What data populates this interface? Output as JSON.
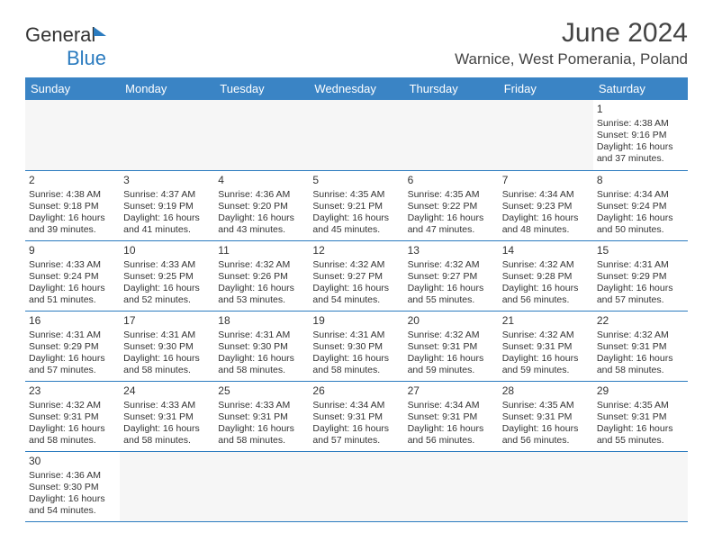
{
  "brand": {
    "name_part1": "General",
    "name_part2": "Blue"
  },
  "title": "June 2024",
  "location": "Warnice, West Pomerania, Poland",
  "colors": {
    "header_bg": "#3a84c5",
    "border": "#2b7bbf",
    "brand_blue": "#2b7bbf",
    "text": "#333333",
    "empty_bg": "#f6f6f6"
  },
  "day_headers": [
    "Sunday",
    "Monday",
    "Tuesday",
    "Wednesday",
    "Thursday",
    "Friday",
    "Saturday"
  ],
  "weeks": [
    [
      null,
      null,
      null,
      null,
      null,
      null,
      {
        "d": "1",
        "sr": "4:38 AM",
        "ss": "9:16 PM",
        "dl": "16 hours and 37 minutes."
      }
    ],
    [
      {
        "d": "2",
        "sr": "4:38 AM",
        "ss": "9:18 PM",
        "dl": "16 hours and 39 minutes."
      },
      {
        "d": "3",
        "sr": "4:37 AM",
        "ss": "9:19 PM",
        "dl": "16 hours and 41 minutes."
      },
      {
        "d": "4",
        "sr": "4:36 AM",
        "ss": "9:20 PM",
        "dl": "16 hours and 43 minutes."
      },
      {
        "d": "5",
        "sr": "4:35 AM",
        "ss": "9:21 PM",
        "dl": "16 hours and 45 minutes."
      },
      {
        "d": "6",
        "sr": "4:35 AM",
        "ss": "9:22 PM",
        "dl": "16 hours and 47 minutes."
      },
      {
        "d": "7",
        "sr": "4:34 AM",
        "ss": "9:23 PM",
        "dl": "16 hours and 48 minutes."
      },
      {
        "d": "8",
        "sr": "4:34 AM",
        "ss": "9:24 PM",
        "dl": "16 hours and 50 minutes."
      }
    ],
    [
      {
        "d": "9",
        "sr": "4:33 AM",
        "ss": "9:24 PM",
        "dl": "16 hours and 51 minutes."
      },
      {
        "d": "10",
        "sr": "4:33 AM",
        "ss": "9:25 PM",
        "dl": "16 hours and 52 minutes."
      },
      {
        "d": "11",
        "sr": "4:32 AM",
        "ss": "9:26 PM",
        "dl": "16 hours and 53 minutes."
      },
      {
        "d": "12",
        "sr": "4:32 AM",
        "ss": "9:27 PM",
        "dl": "16 hours and 54 minutes."
      },
      {
        "d": "13",
        "sr": "4:32 AM",
        "ss": "9:27 PM",
        "dl": "16 hours and 55 minutes."
      },
      {
        "d": "14",
        "sr": "4:32 AM",
        "ss": "9:28 PM",
        "dl": "16 hours and 56 minutes."
      },
      {
        "d": "15",
        "sr": "4:31 AM",
        "ss": "9:29 PM",
        "dl": "16 hours and 57 minutes."
      }
    ],
    [
      {
        "d": "16",
        "sr": "4:31 AM",
        "ss": "9:29 PM",
        "dl": "16 hours and 57 minutes."
      },
      {
        "d": "17",
        "sr": "4:31 AM",
        "ss": "9:30 PM",
        "dl": "16 hours and 58 minutes."
      },
      {
        "d": "18",
        "sr": "4:31 AM",
        "ss": "9:30 PM",
        "dl": "16 hours and 58 minutes."
      },
      {
        "d": "19",
        "sr": "4:31 AM",
        "ss": "9:30 PM",
        "dl": "16 hours and 58 minutes."
      },
      {
        "d": "20",
        "sr": "4:32 AM",
        "ss": "9:31 PM",
        "dl": "16 hours and 59 minutes."
      },
      {
        "d": "21",
        "sr": "4:32 AM",
        "ss": "9:31 PM",
        "dl": "16 hours and 59 minutes."
      },
      {
        "d": "22",
        "sr": "4:32 AM",
        "ss": "9:31 PM",
        "dl": "16 hours and 58 minutes."
      }
    ],
    [
      {
        "d": "23",
        "sr": "4:32 AM",
        "ss": "9:31 PM",
        "dl": "16 hours and 58 minutes."
      },
      {
        "d": "24",
        "sr": "4:33 AM",
        "ss": "9:31 PM",
        "dl": "16 hours and 58 minutes."
      },
      {
        "d": "25",
        "sr": "4:33 AM",
        "ss": "9:31 PM",
        "dl": "16 hours and 58 minutes."
      },
      {
        "d": "26",
        "sr": "4:34 AM",
        "ss": "9:31 PM",
        "dl": "16 hours and 57 minutes."
      },
      {
        "d": "27",
        "sr": "4:34 AM",
        "ss": "9:31 PM",
        "dl": "16 hours and 56 minutes."
      },
      {
        "d": "28",
        "sr": "4:35 AM",
        "ss": "9:31 PM",
        "dl": "16 hours and 56 minutes."
      },
      {
        "d": "29",
        "sr": "4:35 AM",
        "ss": "9:31 PM",
        "dl": "16 hours and 55 minutes."
      }
    ],
    [
      {
        "d": "30",
        "sr": "4:36 AM",
        "ss": "9:30 PM",
        "dl": "16 hours and 54 minutes."
      },
      null,
      null,
      null,
      null,
      null,
      null
    ]
  ],
  "labels": {
    "sunrise_prefix": "Sunrise: ",
    "sunset_prefix": "Sunset: ",
    "daylight_prefix": "Daylight: "
  }
}
